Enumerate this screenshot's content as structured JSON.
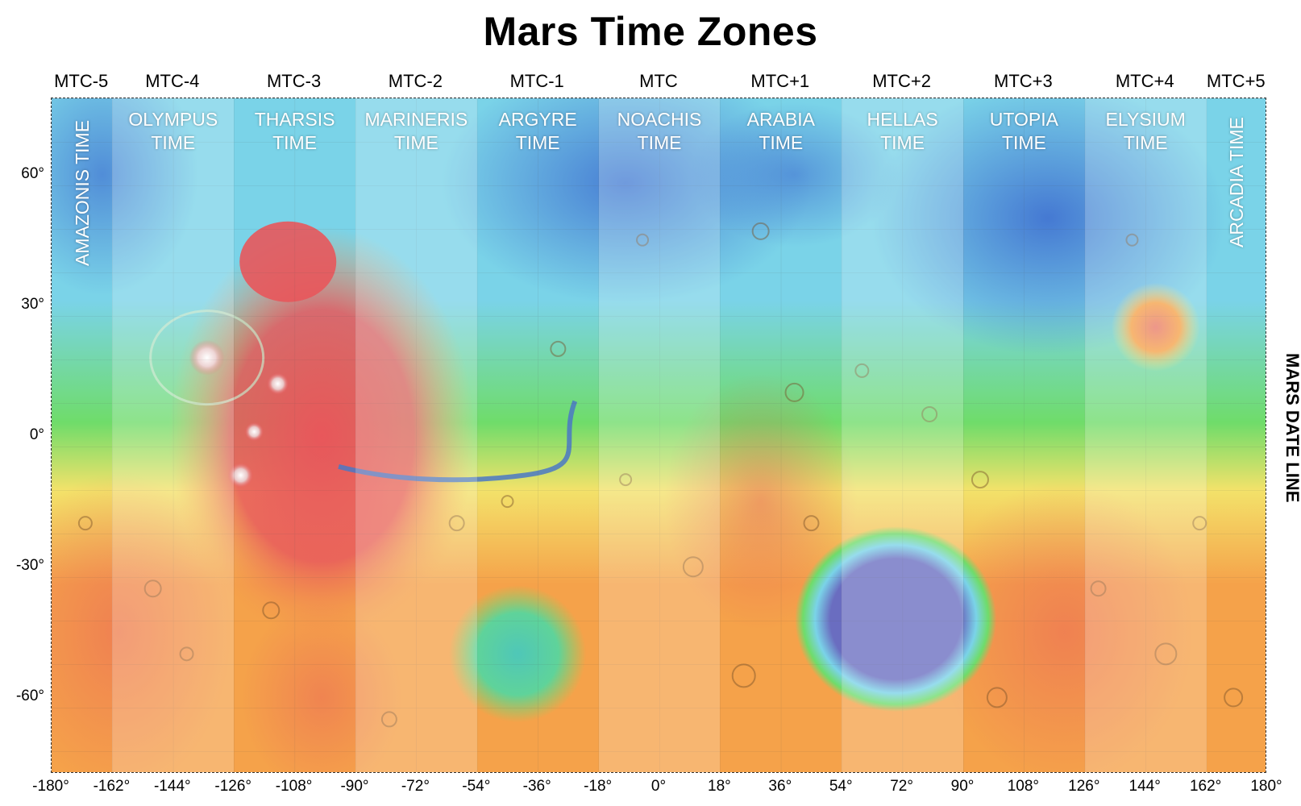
{
  "title": "Mars Time Zones",
  "zone_codes": [
    "MTC-5",
    "MTC-4",
    "MTC-3",
    "MTC-2",
    "MTC-1",
    "MTC",
    "MTC+1",
    "MTC+2",
    "MTC+3",
    "MTC+4",
    "MTC+5"
  ],
  "zone_names": [
    {
      "line1": "AMAZONIS TIME",
      "line2": ""
    },
    {
      "line1": "OLYMPUS",
      "line2": "TIME"
    },
    {
      "line1": "THARSIS",
      "line2": "TIME"
    },
    {
      "line1": "MARINERIS",
      "line2": "TIME"
    },
    {
      "line1": "ARGYRE",
      "line2": "TIME"
    },
    {
      "line1": "NOACHIS",
      "line2": "TIME"
    },
    {
      "line1": "ARABIA",
      "line2": "TIME"
    },
    {
      "line1": "HELLAS",
      "line2": "TIME"
    },
    {
      "line1": "UTOPIA",
      "line2": "TIME"
    },
    {
      "line1": "ELYSIUM",
      "line2": "TIME"
    },
    {
      "line1": "ARCADIA TIME",
      "line2": ""
    }
  ],
  "longitude_ticks": [
    "-180°",
    "-162°",
    "-144°",
    "-126°",
    "-108°",
    "-90°",
    "-72°",
    "-54°",
    "-36°",
    "-18°",
    "0°",
    "18°",
    "36°",
    "54°",
    "72°",
    "90°",
    "108°",
    "126°",
    "144°",
    "162°",
    "180°"
  ],
  "latitude_ticks": [
    "60°",
    "30°",
    "0°",
    "-30°",
    "-60°"
  ],
  "date_line_label": "MARS DATE LINE",
  "colors": {
    "high_elevation": "#e8575b",
    "mid_high": "#f5a24a",
    "mid": "#f3e26a",
    "mid_low": "#6fdc6a",
    "low": "#7ad3e8",
    "lowest": "#3f6fd0",
    "hellas_basin": "#6a6dc0",
    "zone_label": "#ffffff"
  }
}
